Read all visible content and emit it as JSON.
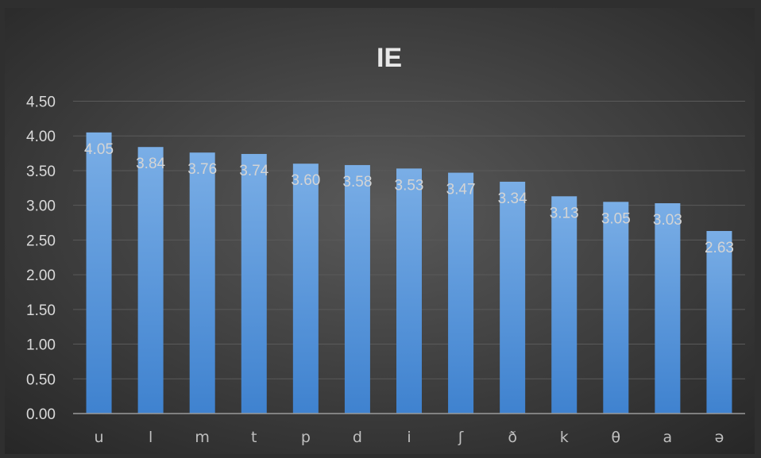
{
  "chart_data": {
    "type": "bar",
    "title": "IE",
    "categories": [
      "u",
      "l",
      "m",
      "t",
      "p",
      "d",
      "i",
      "ʃ",
      "ð",
      "k",
      "θ",
      "a",
      "ə"
    ],
    "values": [
      4.05,
      3.84,
      3.76,
      3.74,
      3.6,
      3.58,
      3.53,
      3.47,
      3.34,
      3.13,
      3.05,
      3.03,
      2.63
    ],
    "data_labels": [
      "4.05",
      "3.84",
      "3.76",
      "3.74",
      "3.60",
      "3.58",
      "3.53",
      "3.47",
      "3.34",
      "3.13",
      "3.05",
      "3.03",
      "2.63"
    ],
    "yticks": [
      "0.00",
      "0.50",
      "1.00",
      "1.50",
      "2.00",
      "2.50",
      "3.00",
      "3.50",
      "4.00",
      "4.50"
    ],
    "ylim": [
      0,
      4.5
    ],
    "xlabel": "",
    "ylabel": "",
    "grid": true,
    "legend": "none",
    "colors": {
      "bar_top": "#7aaee6",
      "bar_bottom": "#3f82cf",
      "background_center": "#595959",
      "background_edge": "#262626",
      "frame": "#2f2f2f"
    }
  }
}
